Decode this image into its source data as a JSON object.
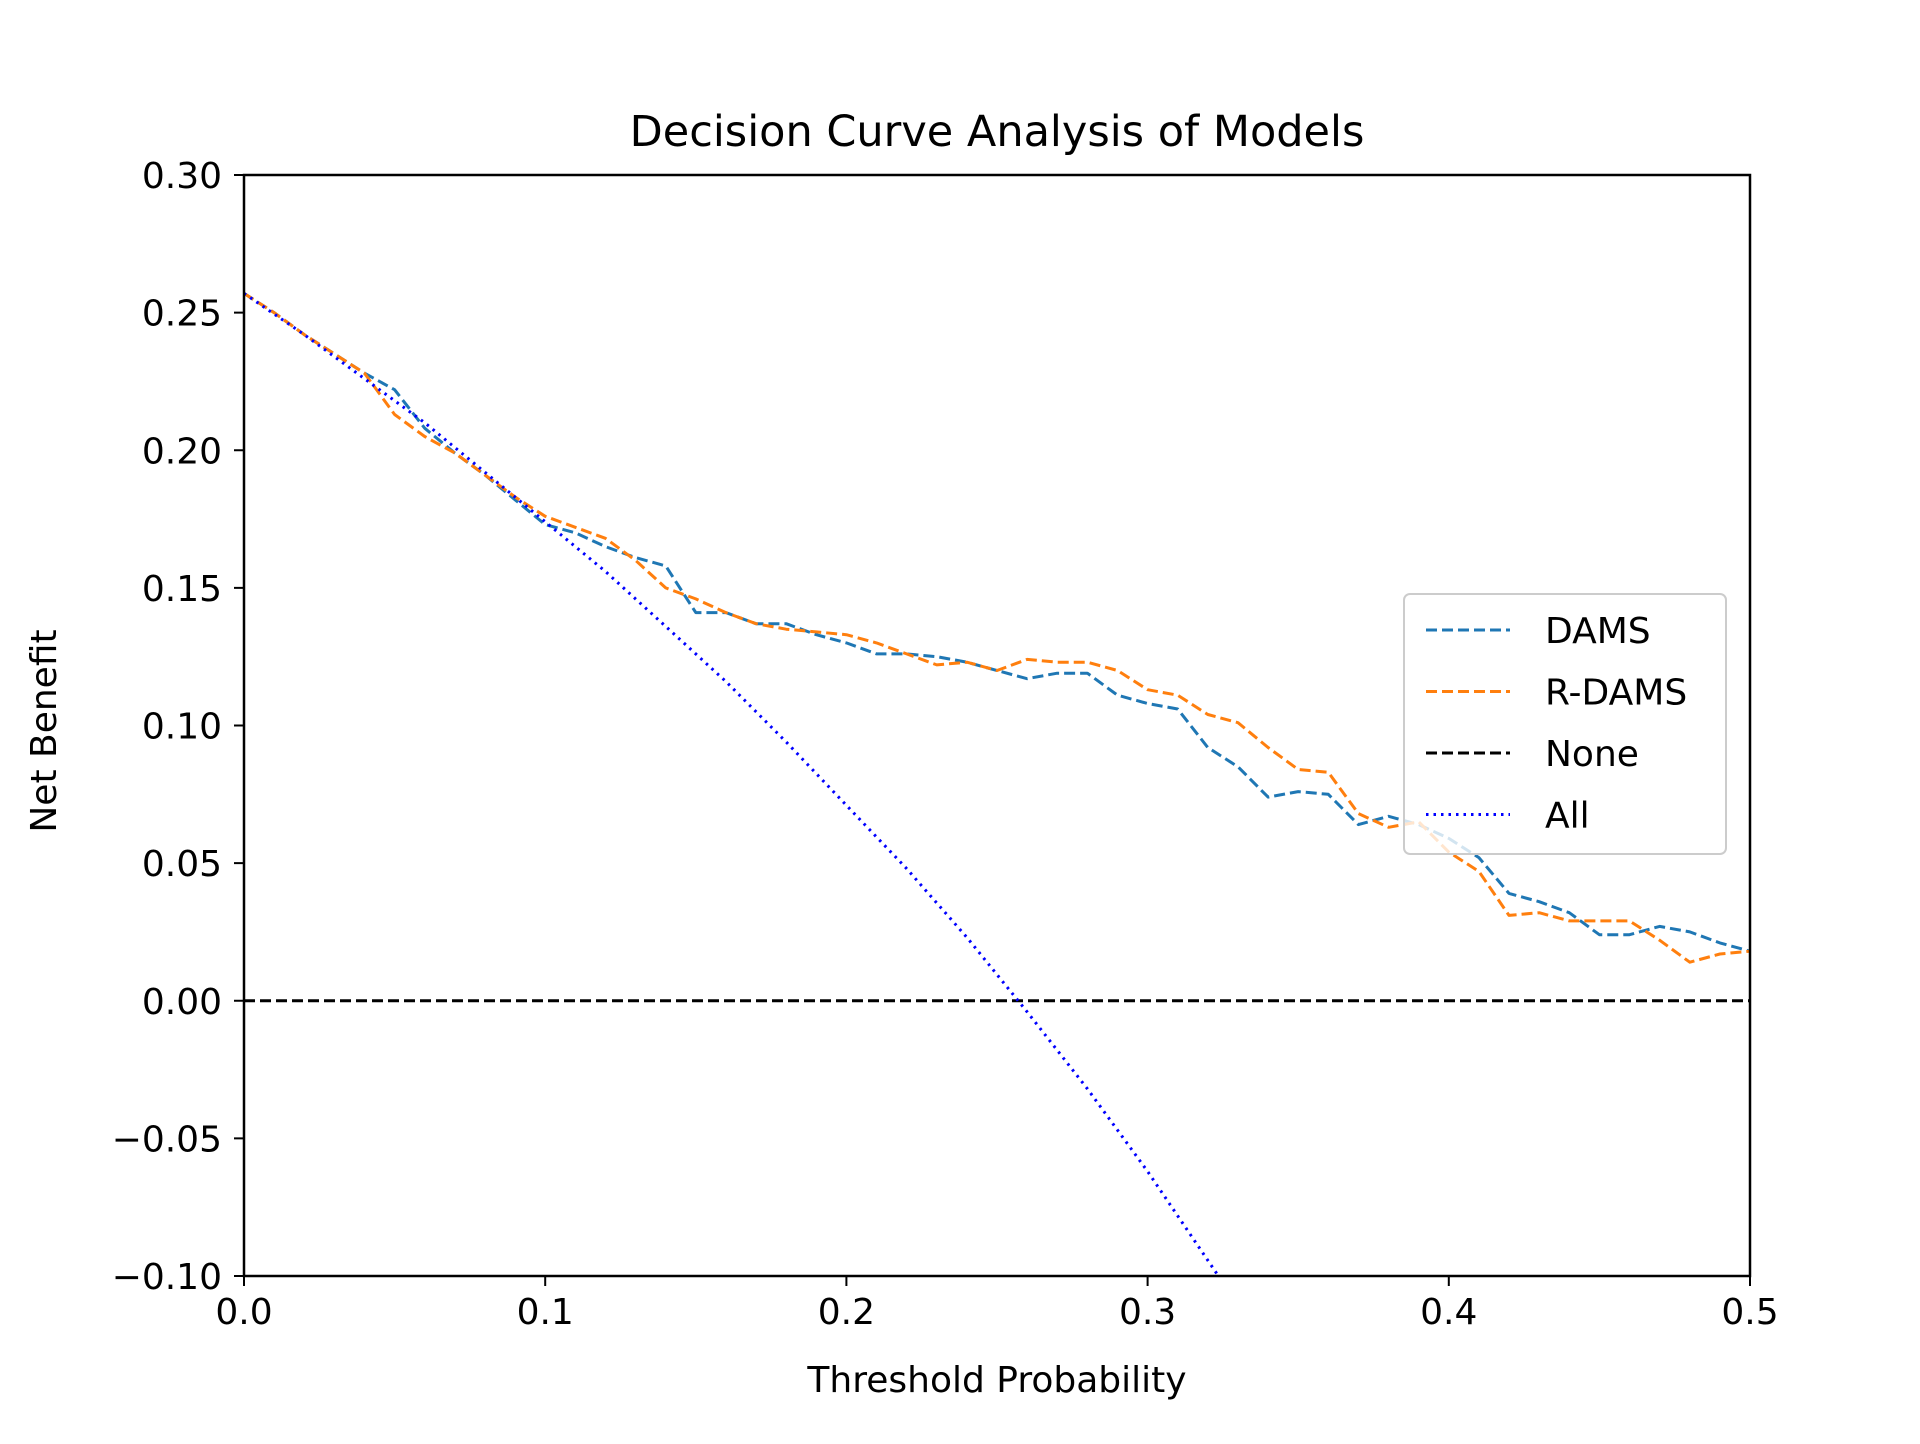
{
  "chart_data": {
    "type": "line",
    "title": "Decision Curve Analysis of Models",
    "xlabel": "Threshold Probability",
    "ylabel": "Net Benefit",
    "xlim": [
      0.0,
      0.5
    ],
    "ylim": [
      -0.1,
      0.3
    ],
    "x_ticks": [
      "0.0",
      "0.1",
      "0.2",
      "0.3",
      "0.4",
      "0.5"
    ],
    "y_ticks": [
      "0.30",
      "0.25",
      "0.20",
      "0.15",
      "0.10",
      "0.05",
      "0.00",
      "−0.05",
      "−0.10"
    ],
    "grid": false,
    "legend": {
      "position": "center-right",
      "entries": [
        "DAMS",
        "R-DAMS",
        "None",
        "All"
      ]
    },
    "series": [
      {
        "name": "DAMS",
        "color": "#1f77b4",
        "style": "dashed",
        "x": [
          0.0,
          0.01,
          0.02,
          0.03,
          0.04,
          0.05,
          0.06,
          0.07,
          0.08,
          0.09,
          0.1,
          0.11,
          0.12,
          0.13,
          0.14,
          0.15,
          0.16,
          0.17,
          0.18,
          0.19,
          0.2,
          0.21,
          0.22,
          0.23,
          0.24,
          0.25,
          0.26,
          0.27,
          0.28,
          0.29,
          0.3,
          0.31,
          0.32,
          0.33,
          0.34,
          0.35,
          0.36,
          0.37,
          0.38,
          0.39,
          0.4,
          0.41,
          0.42,
          0.43,
          0.44,
          0.45,
          0.46,
          0.47,
          0.48,
          0.49,
          0.5
        ],
        "y": [
          0.257,
          0.25,
          0.242,
          0.235,
          0.228,
          0.222,
          0.208,
          0.199,
          0.191,
          0.182,
          0.173,
          0.17,
          0.165,
          0.161,
          0.158,
          0.141,
          0.141,
          0.137,
          0.137,
          0.133,
          0.13,
          0.126,
          0.126,
          0.125,
          0.123,
          0.12,
          0.117,
          0.119,
          0.119,
          0.111,
          0.108,
          0.106,
          0.092,
          0.085,
          0.074,
          0.076,
          0.075,
          0.064,
          0.067,
          0.064,
          0.059,
          0.052,
          0.039,
          0.036,
          0.032,
          0.024,
          0.024,
          0.027,
          0.025,
          0.021,
          0.018
        ]
      },
      {
        "name": "R-DAMS",
        "color": "#ff7f0e",
        "style": "dashed",
        "x": [
          0.0,
          0.01,
          0.02,
          0.03,
          0.04,
          0.05,
          0.06,
          0.07,
          0.08,
          0.09,
          0.1,
          0.11,
          0.12,
          0.13,
          0.14,
          0.15,
          0.16,
          0.17,
          0.18,
          0.19,
          0.2,
          0.21,
          0.22,
          0.23,
          0.24,
          0.25,
          0.26,
          0.27,
          0.28,
          0.29,
          0.3,
          0.31,
          0.32,
          0.33,
          0.34,
          0.35,
          0.36,
          0.37,
          0.38,
          0.39,
          0.4,
          0.41,
          0.42,
          0.43,
          0.44,
          0.45,
          0.46,
          0.47,
          0.48,
          0.49,
          0.5
        ],
        "y": [
          0.257,
          0.25,
          0.242,
          0.235,
          0.228,
          0.213,
          0.205,
          0.199,
          0.191,
          0.183,
          0.176,
          0.172,
          0.168,
          0.16,
          0.15,
          0.146,
          0.141,
          0.137,
          0.135,
          0.134,
          0.133,
          0.13,
          0.126,
          0.122,
          0.123,
          0.12,
          0.124,
          0.123,
          0.123,
          0.12,
          0.113,
          0.111,
          0.104,
          0.101,
          0.092,
          0.084,
          0.083,
          0.068,
          0.063,
          0.065,
          0.054,
          0.047,
          0.031,
          0.032,
          0.029,
          0.029,
          0.029,
          0.022,
          0.014,
          0.017,
          0.018
        ]
      },
      {
        "name": "None",
        "color": "#000000",
        "style": "dashed",
        "x": [
          0.0,
          0.5
        ],
        "y": [
          0.0,
          0.0
        ]
      },
      {
        "name": "All",
        "color": "#0000ff",
        "style": "dotted",
        "x": [
          0.0,
          0.02,
          0.04,
          0.06,
          0.08,
          0.1,
          0.12,
          0.14,
          0.16,
          0.18,
          0.2,
          0.22,
          0.24,
          0.26,
          0.28,
          0.3,
          0.3235
        ],
        "y": [
          0.257,
          0.242,
          0.226,
          0.21,
          0.192,
          0.174,
          0.156,
          0.136,
          0.116,
          0.094,
          0.071,
          0.048,
          0.023,
          -0.004,
          -0.032,
          -0.062,
          -0.1
        ]
      }
    ]
  }
}
